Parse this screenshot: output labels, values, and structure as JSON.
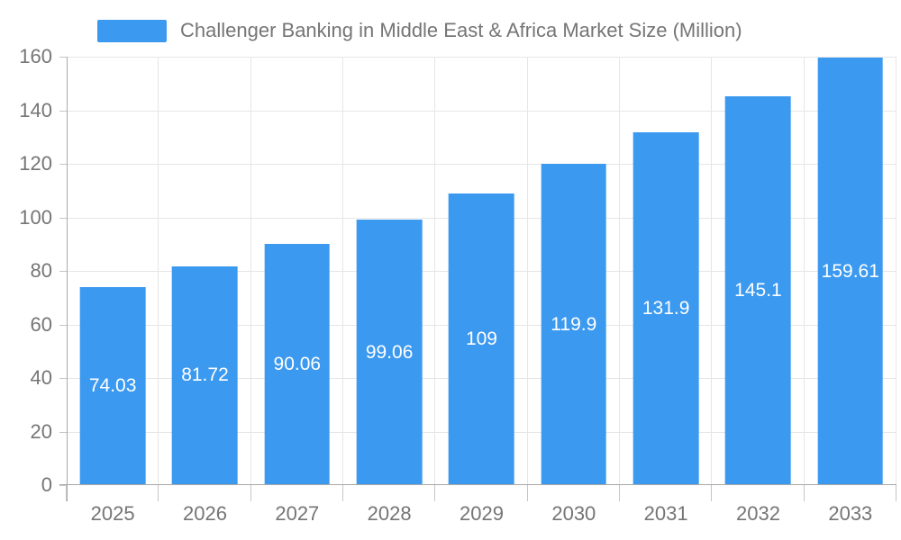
{
  "legend": {
    "label": "Challenger Banking in Middle East & Africa Market Size (Million)"
  },
  "chart_data": {
    "type": "bar",
    "title": "Challenger Banking in Middle East & Africa Market Size (Million)",
    "categories": [
      "2025",
      "2026",
      "2027",
      "2028",
      "2029",
      "2030",
      "2031",
      "2032",
      "2033"
    ],
    "values": [
      74.03,
      81.72,
      90.06,
      99.06,
      109,
      119.9,
      131.9,
      145.1,
      159.61
    ],
    "value_labels": [
      "74.03",
      "81.72",
      "90.06",
      "99.06",
      "109",
      "119.9",
      "131.9",
      "145.1",
      "159.61"
    ],
    "xlabel": "",
    "ylabel": "",
    "ylim": [
      0,
      160
    ],
    "ytick_step": 20,
    "yticks": [
      0,
      20,
      40,
      60,
      80,
      100,
      120,
      140,
      160
    ],
    "grid": true,
    "legend_position": "top",
    "colors": {
      "bar": "#3b99f0",
      "text": "#757575",
      "grid": "#e6e6e6",
      "axis": "#a9a9a9",
      "tick": "#c6c6c6",
      "bar_label": "#ffffff",
      "background": "#ffffff"
    }
  }
}
